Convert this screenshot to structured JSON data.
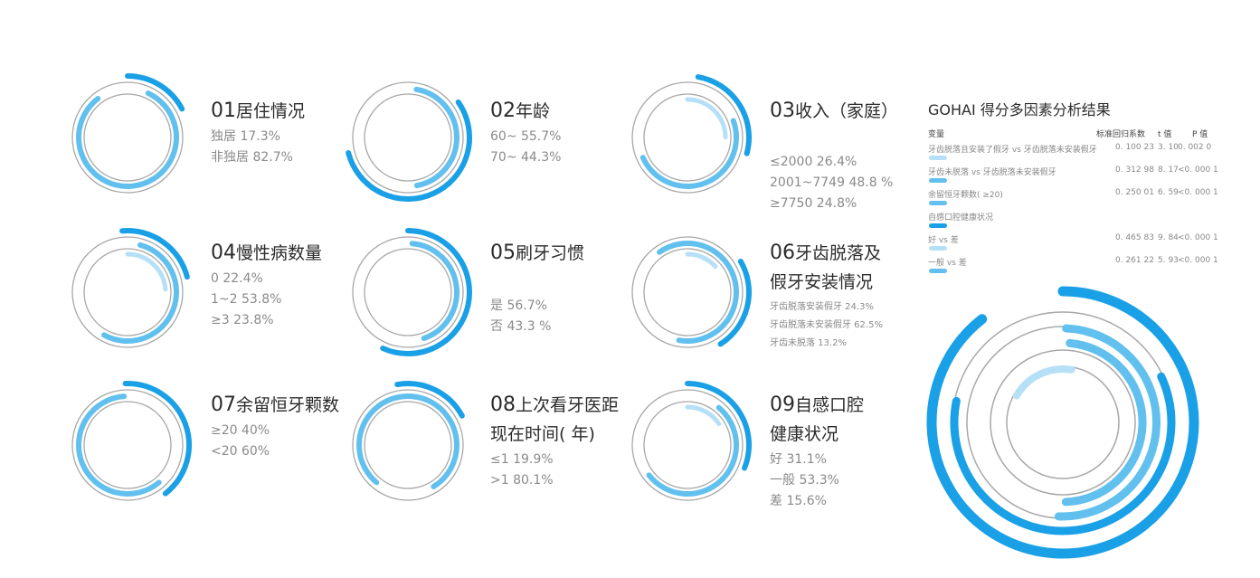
{
  "colors": {
    "ring_dark": "#1aa0e6",
    "ring_mid": "#62c0ef",
    "ring_light": "#b5e0f7",
    "track": "#a8a8a8"
  },
  "chart_data": [
    {
      "type": "pie",
      "title_num": "01",
      "title": "居住情况",
      "ring_order": [
        "outer",
        "middle"
      ],
      "items": [
        {
          "label": "独居",
          "text": "17.3%",
          "value": 17.3
        },
        {
          "label": "非独居",
          "text": "82.7%",
          "value": 82.7
        }
      ]
    },
    {
      "type": "pie",
      "title_num": "02",
      "title": "年龄",
      "ring_order": [
        "outer",
        "middle"
      ],
      "items": [
        {
          "label": "60~",
          "text": "55.7%",
          "value": 55.7
        },
        {
          "label": "70~",
          "text": "44.3%",
          "value": 44.3
        }
      ]
    },
    {
      "type": "pie",
      "title_num": "03",
      "title": "收入（家庭）",
      "ring_order": [
        "outer",
        "middle",
        "inner"
      ],
      "items": [
        {
          "label": "≤2000",
          "text": "26.4%",
          "value": 26.4
        },
        {
          "label": "2001~7749",
          "text": "48.8 %",
          "value": 48.8
        },
        {
          "label": "≥7750",
          "text": "24.8%",
          "value": 24.8
        }
      ]
    },
    {
      "type": "pie",
      "title_num": "04",
      "title": "慢性病数量",
      "ring_order": [
        "outer",
        "middle",
        "inner"
      ],
      "items": [
        {
          "label": "0",
          "text": "22.4%",
          "value": 22.4
        },
        {
          "label": "1~2",
          "text": "53.8%",
          "value": 53.8
        },
        {
          "label": "≥3",
          "text": "23.8%",
          "value": 23.8
        }
      ]
    },
    {
      "type": "pie",
      "title_num": "05",
      "title": "刷牙习惯",
      "ring_order": [
        "outer",
        "middle"
      ],
      "items": [
        {
          "label": "是",
          "text": "56.7%",
          "value": 56.7
        },
        {
          "label": "否",
          "text": "43.3 %",
          "value": 43.3
        }
      ]
    },
    {
      "type": "pie",
      "title_num": "06",
      "title": "牙齿脱落及",
      "title2": "假牙安装情况",
      "ring_order": [
        "outer",
        "middle",
        "inner"
      ],
      "items": [
        {
          "label": "牙齿脱落安装假牙",
          "text": "24.3%",
          "value": 24.3
        },
        {
          "label": "牙齿脱落未安装假牙",
          "text": "62.5%",
          "value": 62.5
        },
        {
          "label": "牙齿未脱落",
          "text": "13.2%",
          "value": 13.2
        }
      ]
    },
    {
      "type": "pie",
      "title_num": "07",
      "title": "余留恒牙颗数",
      "ring_order": [
        "outer",
        "middle"
      ],
      "items": [
        {
          "label": "≥20",
          "text": "40%",
          "value": 40
        },
        {
          "label": "<20",
          "text": "60%",
          "value": 60
        }
      ]
    },
    {
      "type": "pie",
      "title_num": "08",
      "title": "上次看牙医距",
      "title2": "现在时间( 年)",
      "ring_order": [
        "outer",
        "middle"
      ],
      "items": [
        {
          "label": "≤1",
          "text": "19.9%",
          "value": 19.9
        },
        {
          "label": ">1",
          "text": "80.1%",
          "value": 80.1
        }
      ]
    },
    {
      "type": "pie",
      "title_num": "09",
      "title": "自感口腔",
      "title2": "健康状况",
      "ring_order": [
        "outer",
        "middle",
        "inner"
      ],
      "items": [
        {
          "label": "好",
          "text": "31.1%",
          "value": 31.1
        },
        {
          "label": "一般",
          "text": "53.3%",
          "value": 53.3
        },
        {
          "label": "差",
          "text": "15.6%",
          "value": 15.6
        }
      ]
    }
  ],
  "gohai": {
    "title": "GOHAI 得分多因素分析结果",
    "headers": {
      "variable": "变量",
      "coef": "标准回归系数",
      "t": "t 值",
      "p": "P 值"
    },
    "rows": [
      {
        "label": "牙齿脱落且安装了假牙 vs 牙齿脱落未安装假牙",
        "coef": "0. 100 23",
        "t": "3. 10",
        "p": "0. 002 0",
        "coef_value": 0.10023
      },
      {
        "label": "牙齿未脱落 vs 牙齿脱落未安装假牙",
        "coef": "0. 312 98",
        "t": "8. 17",
        "p": "<0. 000 1",
        "coef_value": 0.31298
      },
      {
        "label": "余留恒牙颗数( ≥20)",
        "coef": "0. 250 01",
        "t": "6. 59",
        "p": "<0. 000 1",
        "coef_value": 0.25001
      },
      {
        "label": "自感口腔健康状况",
        "coef": "",
        "t": "",
        "p": ""
      },
      {
        "label": "好 vs 差",
        "coef": "0. 465 83",
        "t": "9. 84",
        "p": "<0. 000 1",
        "coef_value": 0.46583
      },
      {
        "label": "一般 vs 差",
        "coef": "0. 261 22",
        "t": "5. 93",
        "p": "<0. 000 1",
        "coef_value": 0.26122
      }
    ]
  }
}
